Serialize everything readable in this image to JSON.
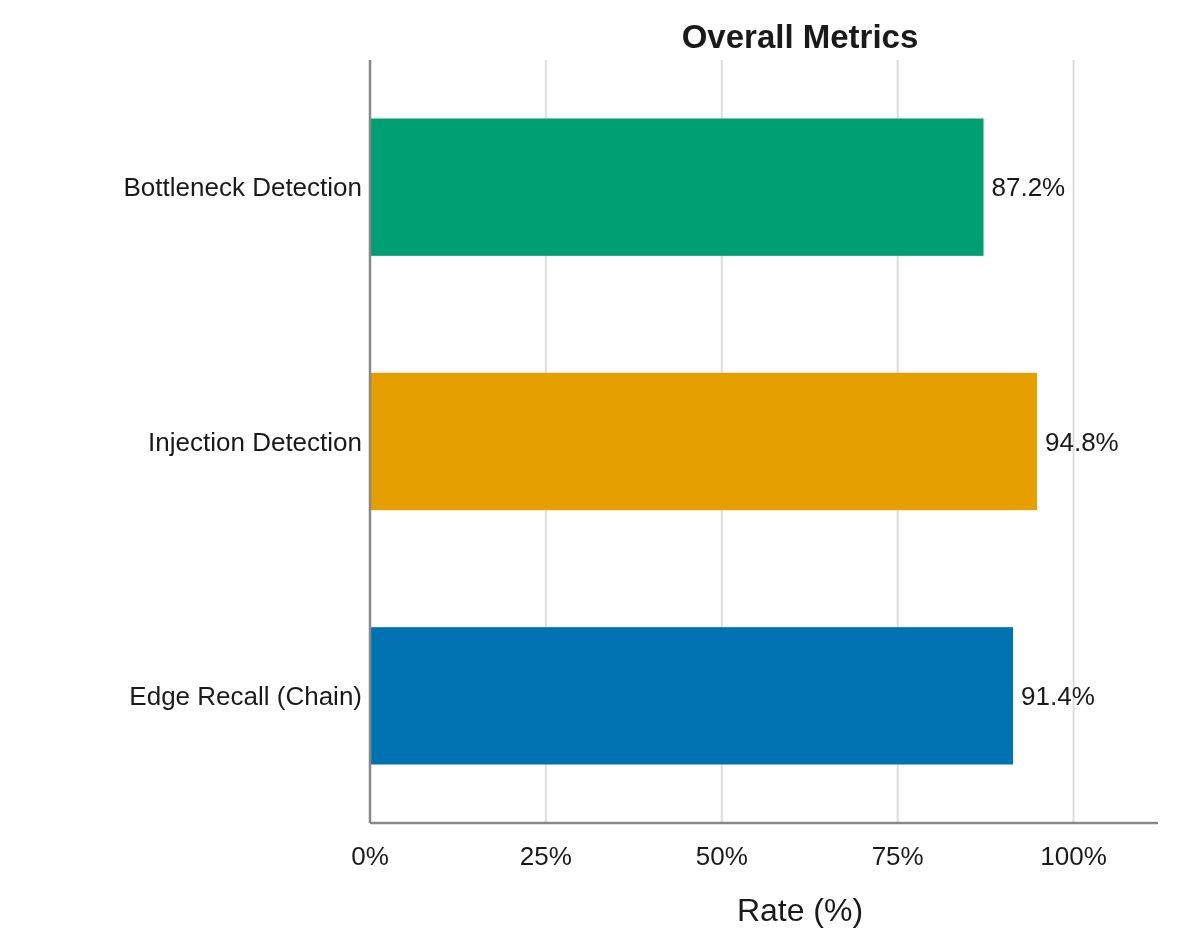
{
  "chart_data": {
    "type": "bar",
    "orientation": "horizontal",
    "title": "Overall Metrics",
    "xlabel": "Rate (%)",
    "categories": [
      "Bottleneck Detection",
      "Injection Detection",
      "Edge Recall (Chain)"
    ],
    "values": [
      87.2,
      94.8,
      91.4
    ],
    "colors": [
      "#009e73",
      "#e69f00",
      "#0072b2"
    ],
    "value_labels": [
      "87.2%",
      "94.8%",
      "91.4%"
    ],
    "xlim": [
      0,
      112
    ],
    "xticks": [
      {
        "value": 0,
        "label": "0%"
      },
      {
        "value": 25,
        "label": "25%"
      },
      {
        "value": 50,
        "label": "50%"
      },
      {
        "value": 75,
        "label": "75%"
      },
      {
        "value": 100,
        "label": "100%"
      }
    ],
    "grid": "x"
  }
}
